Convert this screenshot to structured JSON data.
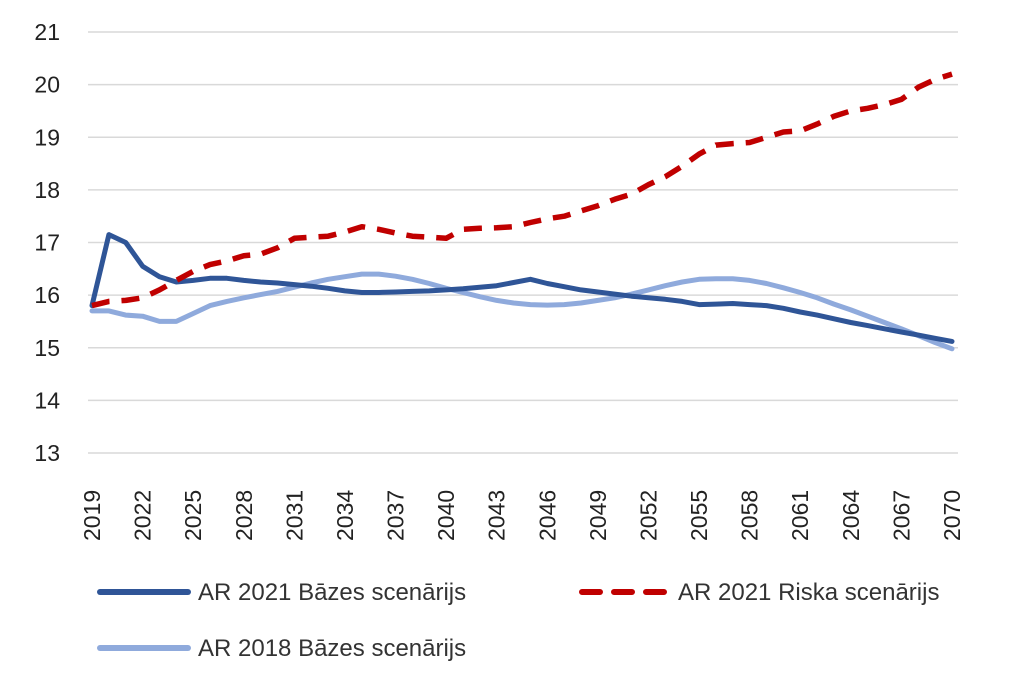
{
  "chart_data": {
    "type": "line",
    "title": "",
    "xlabel": "",
    "ylabel": "",
    "ylim": [
      13,
      21
    ],
    "yticks": [
      "13",
      "14",
      "15",
      "16",
      "17",
      "18",
      "19",
      "20",
      "21"
    ],
    "xlim": [
      2019,
      2070
    ],
    "xticks": [
      "2019",
      "2022",
      "2025",
      "2028",
      "2031",
      "2034",
      "2037",
      "2040",
      "2043",
      "2046",
      "2049",
      "2052",
      "2055",
      "2058",
      "2061",
      "2064",
      "2067",
      "2070"
    ],
    "grid": "horizontal",
    "legend": "bottom",
    "series": [
      {
        "name": "AR 2021 Bāzes scenārijs",
        "color": "#2f5597",
        "style": "solid",
        "x": [
          2019,
          2020,
          2021,
          2022,
          2023,
          2024,
          2025,
          2026,
          2027,
          2028,
          2029,
          2030,
          2031,
          2032,
          2033,
          2034,
          2035,
          2036,
          2037,
          2038,
          2039,
          2040,
          2041,
          2042,
          2043,
          2044,
          2045,
          2046,
          2047,
          2048,
          2049,
          2050,
          2051,
          2052,
          2053,
          2054,
          2055,
          2056,
          2057,
          2058,
          2059,
          2060,
          2061,
          2062,
          2063,
          2064,
          2065,
          2066,
          2067,
          2068,
          2069,
          2070
        ],
        "values": [
          15.8,
          17.15,
          17.0,
          16.55,
          16.35,
          16.25,
          16.28,
          16.32,
          16.32,
          16.28,
          16.25,
          16.23,
          16.2,
          16.17,
          16.13,
          16.08,
          16.05,
          16.05,
          16.06,
          16.07,
          16.08,
          16.1,
          16.12,
          16.15,
          16.18,
          16.24,
          16.3,
          16.22,
          16.16,
          16.1,
          16.06,
          16.02,
          15.98,
          15.95,
          15.92,
          15.88,
          15.82,
          15.83,
          15.84,
          15.82,
          15.8,
          15.75,
          15.68,
          15.62,
          15.55,
          15.48,
          15.42,
          15.36,
          15.3,
          15.24,
          15.18,
          15.12
        ]
      },
      {
        "name": "AR 2021 Riska scenārijs",
        "color": "#c00000",
        "style": "dashed",
        "x": [
          2019,
          2020,
          2021,
          2022,
          2023,
          2024,
          2025,
          2026,
          2027,
          2028,
          2029,
          2030,
          2031,
          2032,
          2033,
          2034,
          2035,
          2036,
          2037,
          2038,
          2039,
          2040,
          2041,
          2042,
          2043,
          2044,
          2045,
          2046,
          2047,
          2048,
          2049,
          2050,
          2051,
          2052,
          2053,
          2054,
          2055,
          2056,
          2057,
          2058,
          2059,
          2060,
          2061,
          2062,
          2063,
          2064,
          2065,
          2066,
          2067,
          2068,
          2069,
          2070
        ],
        "values": [
          15.8,
          15.88,
          15.9,
          15.95,
          16.1,
          16.28,
          16.45,
          16.58,
          16.65,
          16.75,
          16.78,
          16.9,
          17.08,
          17.1,
          17.12,
          17.2,
          17.3,
          17.25,
          17.18,
          17.12,
          17.1,
          17.08,
          17.25,
          17.27,
          17.28,
          17.3,
          17.38,
          17.45,
          17.5,
          17.6,
          17.7,
          17.82,
          17.92,
          18.1,
          18.25,
          18.45,
          18.68,
          18.85,
          18.88,
          18.9,
          19.0,
          19.1,
          19.12,
          19.25,
          19.4,
          19.5,
          19.55,
          19.62,
          19.72,
          19.95,
          20.1,
          20.2
        ]
      },
      {
        "name": "AR 2018 Bāzes scenārijs",
        "color": "#8faadc",
        "style": "solid",
        "x": [
          2019,
          2020,
          2021,
          2022,
          2023,
          2024,
          2025,
          2026,
          2027,
          2028,
          2029,
          2030,
          2031,
          2032,
          2033,
          2034,
          2035,
          2036,
          2037,
          2038,
          2039,
          2040,
          2041,
          2042,
          2043,
          2044,
          2045,
          2046,
          2047,
          2048,
          2049,
          2050,
          2051,
          2052,
          2053,
          2054,
          2055,
          2056,
          2057,
          2058,
          2059,
          2060,
          2061,
          2062,
          2063,
          2064,
          2065,
          2066,
          2067,
          2068,
          2069,
          2070
        ],
        "values": [
          15.7,
          15.7,
          15.62,
          15.6,
          15.5,
          15.5,
          15.65,
          15.8,
          15.88,
          15.95,
          16.01,
          16.07,
          16.15,
          16.23,
          16.3,
          16.35,
          16.4,
          16.4,
          16.36,
          16.3,
          16.22,
          16.13,
          16.05,
          15.97,
          15.9,
          15.85,
          15.82,
          15.81,
          15.82,
          15.85,
          15.9,
          15.95,
          16.02,
          16.1,
          16.18,
          16.25,
          16.3,
          16.31,
          16.31,
          16.28,
          16.22,
          16.14,
          16.05,
          15.95,
          15.83,
          15.72,
          15.6,
          15.48,
          15.36,
          15.23,
          15.1,
          14.98
        ]
      }
    ]
  }
}
